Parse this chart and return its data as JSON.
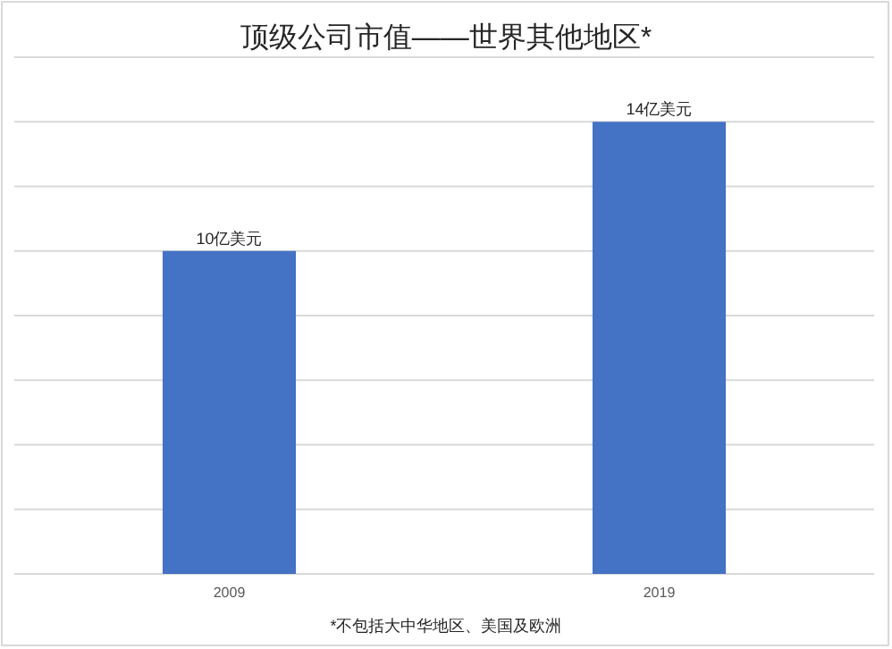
{
  "chart_data": {
    "type": "bar",
    "title": "顶级公司市值——世界其他地区*",
    "categories": [
      "2009",
      "2019"
    ],
    "values": [
      10,
      14
    ],
    "color": "#4472c4",
    "value_labels": [
      "10亿美元",
      "14亿美元"
    ],
    "ylim": [
      0,
      16
    ],
    "yticks": [
      {
        "value": 0,
        "label": null
      },
      {
        "value": 2,
        "label": null
      },
      {
        "value": 4,
        "label": null
      },
      {
        "value": 6,
        "label": null
      },
      {
        "value": 8,
        "label": null
      },
      {
        "value": 10,
        "label": null
      },
      {
        "value": 12,
        "label": null
      },
      {
        "value": 14,
        "label": null
      },
      {
        "value": 16,
        "label": null
      }
    ],
    "grid": "y",
    "tick_labels": "x",
    "annotations": [
      "*不包括大中华地区、美国及欧洲"
    ]
  }
}
